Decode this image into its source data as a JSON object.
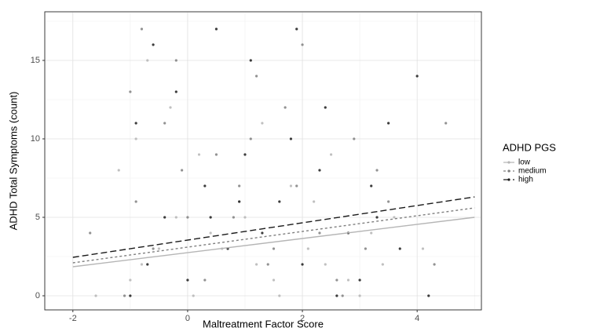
{
  "chart_data": {
    "type": "scatter",
    "xlabel": "Maltreatment Factor Score",
    "ylabel": "ADHD Total Symptoms (count)",
    "legend_title": "ADHD PGS",
    "xlim": [
      -2.49,
      5.12
    ],
    "ylim": [
      -0.9,
      18.1
    ],
    "xticks": [
      -2,
      0,
      2,
      4
    ],
    "yticks": [
      0,
      5,
      10,
      15
    ],
    "minor_xgrid": [
      -1,
      1,
      3,
      5
    ],
    "minor_ygrid": [
      2.5,
      7.5,
      12.5,
      17.5
    ],
    "grid": true,
    "legend": "right",
    "series": [
      {
        "name": "low",
        "color": "#b5b5b5",
        "dash": "none",
        "x": [
          -1.6,
          -1.0,
          -0.8,
          -0.5,
          -0.2,
          0.1,
          0.4,
          0.9,
          1.2,
          1.5,
          1.8,
          2.1,
          2.5,
          3.0,
          3.4,
          -1.2,
          -0.9,
          -0.3,
          0.6,
          1.0,
          1.6,
          2.2,
          2.8,
          3.2,
          -0.7,
          0.2,
          1.3,
          2.4,
          3.6,
          4.1
        ],
        "values": [
          0,
          1,
          2,
          3,
          5,
          0,
          4,
          6,
          2,
          1,
          7,
          3,
          9,
          0,
          2,
          8,
          10,
          12,
          3,
          5,
          0,
          6,
          1,
          4,
          15,
          9,
          11,
          2,
          5,
          3
        ],
        "fit_x": [
          -2,
          5
        ],
        "fit_values": [
          1.85,
          5.0
        ]
      },
      {
        "name": "medium",
        "color": "#7f7f7f",
        "dash": "3,3",
        "x": [
          -1.7,
          -1.1,
          -0.9,
          -0.6,
          -0.1,
          0.3,
          0.8,
          1.1,
          1.4,
          1.9,
          2.3,
          2.7,
          3.1,
          3.5,
          4.3,
          -1.0,
          -0.4,
          0.5,
          1.2,
          1.7,
          2.0,
          2.6,
          3.3,
          -0.8,
          0.0,
          0.9,
          2.9,
          4.5,
          -0.2,
          1.5
        ],
        "values": [
          4,
          0,
          6,
          3,
          8,
          1,
          5,
          10,
          2,
          7,
          4,
          0,
          3,
          6,
          2,
          13,
          11,
          9,
          14,
          12,
          16,
          1,
          8,
          17,
          5,
          7,
          10,
          11,
          15,
          3
        ],
        "fit_x": [
          -2,
          5
        ],
        "fit_values": [
          2.1,
          5.6
        ]
      },
      {
        "name": "high",
        "color": "#1a1a1a",
        "dash": "8,4",
        "x": [
          -1.0,
          -0.7,
          -0.4,
          0.0,
          0.3,
          0.7,
          1.0,
          1.3,
          1.6,
          2.0,
          2.3,
          2.6,
          3.0,
          3.3,
          3.7,
          4.0,
          4.2,
          -0.9,
          -0.2,
          0.5,
          1.1,
          1.8,
          2.4,
          3.2,
          0.9,
          1.9,
          2.8,
          3.5,
          -0.6,
          0.4
        ],
        "values": [
          0,
          2,
          5,
          1,
          7,
          3,
          9,
          4,
          6,
          2,
          8,
          0,
          1,
          5,
          3,
          14,
          0,
          11,
          13,
          17,
          15,
          10,
          12,
          7,
          6,
          17,
          4,
          11,
          16,
          5
        ],
        "fit_x": [
          -2,
          5
        ],
        "fit_values": [
          2.45,
          6.3
        ]
      }
    ]
  }
}
